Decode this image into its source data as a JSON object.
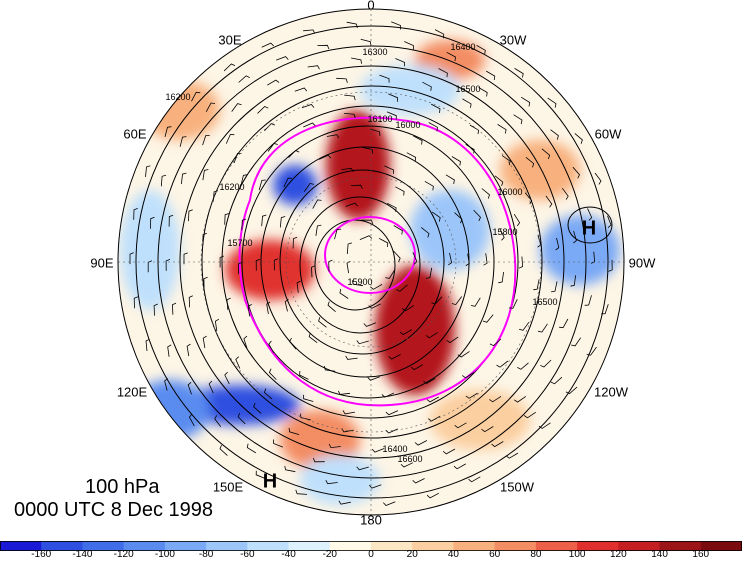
{
  "title": {
    "level": "100 hPa",
    "valid_time": "0000 UTC 8 Dec 1998"
  },
  "longitude_labels": {
    "lon_0": "0",
    "lon_30w": "30W",
    "lon_60w": "60W",
    "lon_90w": "90W",
    "lon_120w": "120W",
    "lon_150w": "150W",
    "lon_180": "180",
    "lon_150e": "150E",
    "lon_120e": "120E",
    "lon_90e": "90E",
    "lon_60e": "60E",
    "lon_30e": "30E"
  },
  "pressure_centers": {
    "high_east": "H",
    "high_southwest": "H"
  },
  "contour_labels": [
    "16300",
    "16400",
    "16500",
    "16200",
    "16100",
    "16000",
    "16200",
    "15700",
    "15900",
    "15800",
    "16600",
    "16400",
    "16500",
    "16000"
  ],
  "colorbar": {
    "ticks": [
      "-160",
      "-140",
      "-120",
      "-100",
      "-80",
      "-60",
      "-40",
      "-20",
      "0",
      "20",
      "40",
      "60",
      "80",
      "100",
      "120",
      "140",
      "160"
    ],
    "colors": [
      "#1a1ad6",
      "#2e4fe0",
      "#3f6ee8",
      "#5a8cf0",
      "#7aa9f5",
      "#9cc6fa",
      "#bfe0fc",
      "#ddf2fd",
      "#fffbe8",
      "#fde6c4",
      "#fbcfa0",
      "#f8b17e",
      "#f38d63",
      "#ec5f48",
      "#e0302e",
      "#c41d22",
      "#9b1418",
      "#7a0c10"
    ]
  },
  "colors": {
    "contour": "#000000",
    "magenta_isotach": "#ff00ff",
    "land_outline": "#444444"
  }
}
